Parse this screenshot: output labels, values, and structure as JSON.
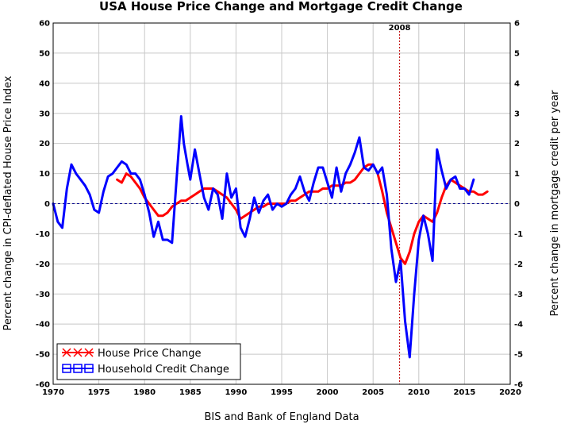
{
  "chart_data": {
    "type": "line",
    "title": "USA House Price Change and Mortgage Credit Change",
    "xlabel": "BIS and Bank of England Data",
    "ylabel": "Percent change in CPI-deflated House Price Index",
    "ylabel_right": "Percent change in mortgage credit per year",
    "xlim": [
      1970,
      2020
    ],
    "ylim": [
      -60,
      60
    ],
    "ylim_right": [
      -6,
      6
    ],
    "x_ticks": [
      1970,
      1975,
      1980,
      1985,
      1990,
      1995,
      2000,
      2005,
      2010,
      2015,
      2020
    ],
    "y_ticks": [
      60,
      50,
      40,
      30,
      20,
      10,
      0,
      -10,
      -20,
      -30,
      -40,
      -50,
      -60
    ],
    "y_ticks_right": [
      6,
      5,
      4,
      3,
      2,
      1,
      0,
      -1,
      -2,
      -3,
      -4,
      -5,
      -6
    ],
    "grid": true,
    "legend_position": "bottom-left",
    "annotations": [
      {
        "label": "2008",
        "x": 2007.9
      }
    ],
    "zero_line": true,
    "series": [
      {
        "name": "House Price Change",
        "color": "#ff0000",
        "axis": "left",
        "x": [
          1977.0,
          1977.5,
          1978.0,
          1978.5,
          1979.0,
          1979.5,
          1980.0,
          1980.5,
          1981.0,
          1981.5,
          1982.0,
          1982.5,
          1983.0,
          1983.5,
          1984.0,
          1984.5,
          1985.0,
          1985.5,
          1986.0,
          1986.5,
          1987.0,
          1987.5,
          1988.0,
          1988.5,
          1989.0,
          1989.5,
          1990.0,
          1990.5,
          1991.0,
          1991.5,
          1992.0,
          1992.5,
          1993.0,
          1993.5,
          1994.0,
          1994.5,
          1995.0,
          1995.5,
          1996.0,
          1996.5,
          1997.0,
          1997.5,
          1998.0,
          1998.5,
          1999.0,
          1999.5,
          2000.0,
          2000.5,
          2001.0,
          2001.5,
          2002.0,
          2002.5,
          2003.0,
          2003.5,
          2004.0,
          2004.5,
          2005.0,
          2005.5,
          2006.0,
          2006.5,
          2007.0,
          2007.5,
          2008.0,
          2008.5,
          2009.0,
          2009.5,
          2010.0,
          2010.5,
          2011.0,
          2011.5,
          2012.0,
          2012.5,
          2013.0,
          2013.5,
          2014.0,
          2014.5,
          2015.0,
          2015.5,
          2016.0,
          2016.5,
          2017.0,
          2017.5
        ],
        "values": [
          8,
          7,
          10,
          9,
          7,
          5,
          2,
          0,
          -2,
          -4,
          -4,
          -3,
          -1,
          0,
          1,
          1,
          2,
          3,
          4,
          5,
          5,
          5,
          4,
          3,
          2,
          0,
          -2,
          -5,
          -4,
          -3,
          -2,
          -1,
          -1,
          0,
          0,
          0,
          0,
          0,
          1,
          1,
          2,
          3,
          4,
          4,
          4,
          5,
          5,
          6,
          6,
          6,
          7,
          7,
          8,
          10,
          12,
          13,
          13,
          10,
          4,
          -3,
          -8,
          -13,
          -18,
          -20,
          -16,
          -10,
          -6,
          -4,
          -5,
          -6,
          -3,
          2,
          6,
          8,
          7,
          6,
          5,
          4,
          4,
          3,
          3,
          4
        ]
      },
      {
        "name": "Household Credit Change",
        "color": "#0000ff",
        "axis": "right",
        "x": [
          1970.0,
          1970.5,
          1971.0,
          1971.5,
          1972.0,
          1972.5,
          1973.0,
          1973.5,
          1974.0,
          1974.5,
          1975.0,
          1975.5,
          1976.0,
          1976.5,
          1977.0,
          1977.5,
          1978.0,
          1978.5,
          1979.0,
          1979.5,
          1980.0,
          1980.5,
          1981.0,
          1981.5,
          1982.0,
          1982.5,
          1983.0,
          1983.5,
          1984.0,
          1984.3,
          1984.7,
          1985.0,
          1985.5,
          1986.0,
          1986.5,
          1987.0,
          1987.5,
          1988.0,
          1988.5,
          1989.0,
          1989.5,
          1990.0,
          1990.5,
          1991.0,
          1991.5,
          1992.0,
          1992.5,
          1993.0,
          1993.5,
          1994.0,
          1994.5,
          1995.0,
          1995.5,
          1996.0,
          1996.5,
          1997.0,
          1997.5,
          1998.0,
          1998.5,
          1999.0,
          1999.5,
          2000.0,
          2000.5,
          2001.0,
          2001.5,
          2002.0,
          2002.5,
          2003.0,
          2003.5,
          2004.0,
          2004.5,
          2005.0,
          2005.5,
          2006.0,
          2006.5,
          2007.0,
          2007.5,
          2008.0,
          2008.5,
          2009.0,
          2009.5,
          2010.0,
          2010.5,
          2011.0,
          2011.5,
          2012.0,
          2012.5,
          2013.0,
          2013.5,
          2014.0,
          2014.5,
          2015.0,
          2015.5,
          2016.0
        ],
        "values": [
          0.0,
          -0.6,
          -0.8,
          0.5,
          1.3,
          1.0,
          0.8,
          0.6,
          0.3,
          -0.2,
          -0.3,
          0.4,
          0.9,
          1.0,
          1.2,
          1.4,
          1.3,
          1.0,
          1.0,
          0.8,
          0.3,
          -0.3,
          -1.1,
          -0.6,
          -1.2,
          -1.2,
          -1.3,
          0.8,
          2.9,
          2.0,
          1.3,
          0.8,
          1.8,
          1.0,
          0.2,
          -0.2,
          0.5,
          0.3,
          -0.5,
          1.0,
          0.2,
          0.5,
          -0.8,
          -1.1,
          -0.5,
          0.2,
          -0.3,
          0.1,
          0.3,
          -0.2,
          0.0,
          -0.1,
          0.0,
          0.3,
          0.5,
          0.9,
          0.4,
          0.1,
          0.7,
          1.2,
          1.2,
          0.7,
          0.2,
          1.2,
          0.4,
          1.0,
          1.3,
          1.7,
          2.2,
          1.2,
          1.1,
          1.3,
          1.0,
          1.2,
          0.3,
          -1.5,
          -2.6,
          -1.9,
          -3.9,
          -5.1,
          -3.0,
          -1.2,
          -0.4,
          -1.0,
          -1.9,
          1.8,
          1.1,
          0.5,
          0.8,
          0.9,
          0.5,
          0.5,
          0.3,
          0.8
        ]
      }
    ]
  }
}
